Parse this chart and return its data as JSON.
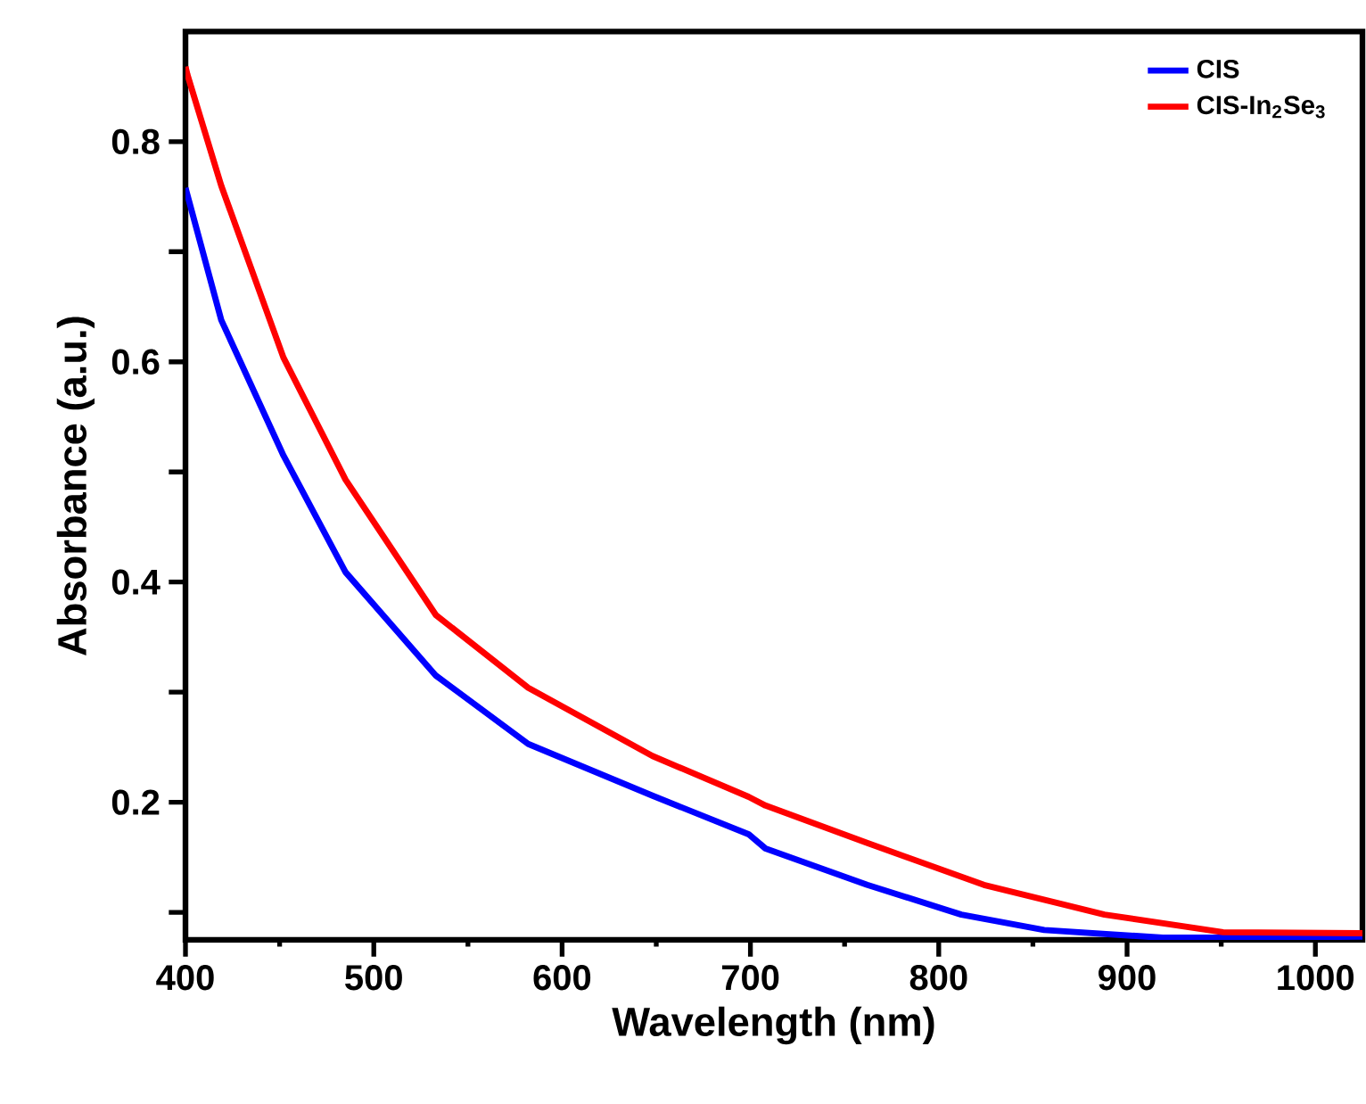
{
  "chart_data": {
    "type": "line",
    "xlabel": "Wavelength (nm)",
    "ylabel": "Absorbance (a.u.)",
    "xlim": [
      400,
      1025
    ],
    "ylim": [
      0.075,
      0.9
    ],
    "xticks": [
      400,
      500,
      600,
      700,
      800,
      900,
      1000
    ],
    "yticks": [
      {
        "value": 0.1,
        "label": null
      },
      0.2,
      {
        "value": 0.3,
        "label": null
      },
      0.4,
      {
        "value": 0.5,
        "label": null
      },
      0.6,
      {
        "value": 0.7,
        "label": null
      },
      0.8
    ],
    "legend": "top right",
    "grid": false,
    "marker": "none",
    "line_style": "solid",
    "series": [
      {
        "name": "CIS",
        "color": "#0000ff",
        "x": [
          400,
          419,
          452,
          485,
          533,
          582,
          648,
          699,
          708,
          762,
          812,
          856,
          919,
          960,
          1025
        ],
        "values": [
          0.758,
          0.638,
          0.515,
          0.409,
          0.315,
          0.253,
          0.206,
          0.171,
          0.158,
          0.125,
          0.098,
          0.084,
          0.077,
          0.077,
          0.078
        ]
      },
      {
        "name": "CIS-In$_{2}$Se$_{3}$",
        "color": "#ff0000",
        "x": [
          400,
          401,
          419,
          452,
          485,
          533,
          582,
          648,
          699,
          708,
          762,
          824,
          888,
          951,
          1025
        ],
        "values": [
          0.868,
          0.861,
          0.76,
          0.604,
          0.493,
          0.37,
          0.304,
          0.242,
          0.205,
          0.197,
          0.163,
          0.125,
          0.098,
          0.082,
          0.081
        ]
      }
    ]
  }
}
